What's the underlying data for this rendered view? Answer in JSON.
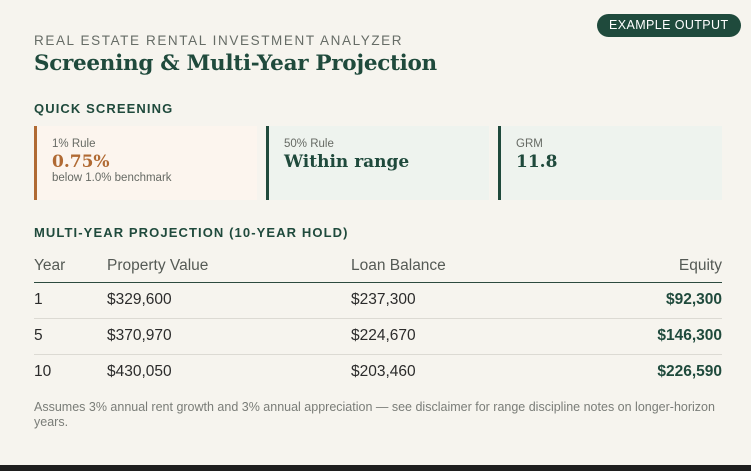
{
  "badge": "EXAMPLE OUTPUT",
  "eyebrow": "REAL ESTATE RENTAL INVESTMENT ANALYZER",
  "title": "Screening & Multi-Year Projection",
  "screening": {
    "heading": "QUICK SCREENING",
    "cards": [
      {
        "label": "1% Rule",
        "value": "0.75%",
        "note": "below 1.0% benchmark",
        "status": "warn"
      },
      {
        "label": "50% Rule",
        "value": "Within range",
        "note": "",
        "status": "ok"
      },
      {
        "label": "GRM",
        "value": "11.8",
        "note": "",
        "status": "ok"
      }
    ]
  },
  "projection": {
    "heading": "MULTI-YEAR PROJECTION (10-YEAR HOLD)",
    "columns": [
      "Year",
      "Property Value",
      "Loan Balance",
      "Equity"
    ],
    "rows": [
      {
        "year": "1",
        "property_value": "$329,600",
        "loan_balance": "$237,300",
        "equity": "$92,300"
      },
      {
        "year": "5",
        "property_value": "$370,970",
        "loan_balance": "$224,670",
        "equity": "$146,300"
      },
      {
        "year": "10",
        "property_value": "$430,050",
        "loan_balance": "$203,460",
        "equity": "$226,590"
      }
    ]
  },
  "footnote": "Assumes 3% annual rent growth and 3% annual appreciation — see disclaimer for range discipline notes on longer-horizon years.",
  "colors": {
    "accent_green": "#1f4a3c",
    "warn_orange": "#b06a33",
    "background": "#f6f4ee"
  }
}
